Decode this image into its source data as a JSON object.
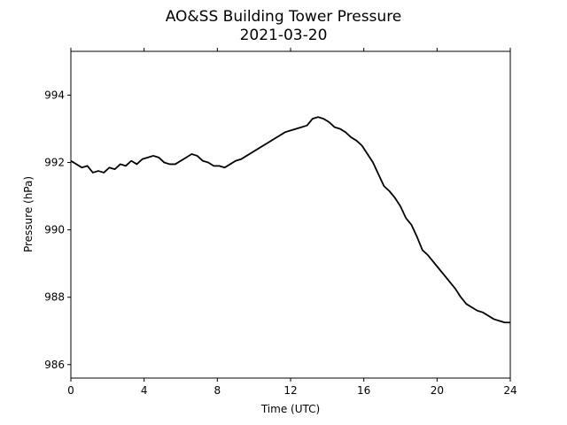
{
  "chart_data": {
    "type": "line",
    "title": "AO&SS Building Tower Pressure",
    "subtitle": "2021-03-20",
    "xlabel": "Time (UTC)",
    "ylabel": "Pressure (hPa)",
    "xlim": [
      0,
      24
    ],
    "ylim": [
      985.6,
      995.3
    ],
    "xticks": [
      0,
      4,
      8,
      12,
      16,
      20,
      24
    ],
    "yticks": [
      986,
      988,
      990,
      992,
      994
    ],
    "grid": false,
    "series": [
      {
        "color": "#000000",
        "x": [
          0,
          0.3,
          0.6,
          0.9,
          1.2,
          1.5,
          1.8,
          2.1,
          2.4,
          2.7,
          3.0,
          3.3,
          3.6,
          3.9,
          4.2,
          4.5,
          4.8,
          5.1,
          5.4,
          5.7,
          6.0,
          6.3,
          6.6,
          6.9,
          7.2,
          7.5,
          7.8,
          8.1,
          8.4,
          8.7,
          9.0,
          9.3,
          9.6,
          9.9,
          10.2,
          10.5,
          10.8,
          11.1,
          11.4,
          11.7,
          12.0,
          12.3,
          12.6,
          12.9,
          13.2,
          13.5,
          13.8,
          14.1,
          14.4,
          14.7,
          15.0,
          15.3,
          15.6,
          15.9,
          16.2,
          16.5,
          16.8,
          17.1,
          17.4,
          17.7,
          18.0,
          18.3,
          18.6,
          18.9,
          19.2,
          19.5,
          19.8,
          20.1,
          20.4,
          20.7,
          21.0,
          21.3,
          21.6,
          21.9,
          22.2,
          22.5,
          22.8,
          23.1,
          23.4,
          23.7,
          24.0
        ],
        "values": [
          992.05,
          991.95,
          991.85,
          991.9,
          991.7,
          991.75,
          991.7,
          991.85,
          991.8,
          991.95,
          991.9,
          992.05,
          991.95,
          992.1,
          992.15,
          992.2,
          992.15,
          992.0,
          991.95,
          991.95,
          992.05,
          992.15,
          992.25,
          992.2,
          992.05,
          992.0,
          991.9,
          991.9,
          991.85,
          991.95,
          992.05,
          992.1,
          992.2,
          992.3,
          992.4,
          992.5,
          992.6,
          992.7,
          992.8,
          992.9,
          992.95,
          993.0,
          993.05,
          993.1,
          993.3,
          993.35,
          993.3,
          993.2,
          993.05,
          993.0,
          992.9,
          992.75,
          992.65,
          992.5,
          992.25,
          992.0,
          991.65,
          991.3,
          991.15,
          990.95,
          990.7,
          990.35,
          990.15,
          989.8,
          989.4,
          989.25,
          989.05,
          988.85,
          988.65,
          988.45,
          988.25,
          988.0,
          987.8,
          987.7,
          987.6,
          987.55,
          987.45,
          987.35,
          987.3,
          987.25,
          987.25
        ]
      }
    ]
  }
}
